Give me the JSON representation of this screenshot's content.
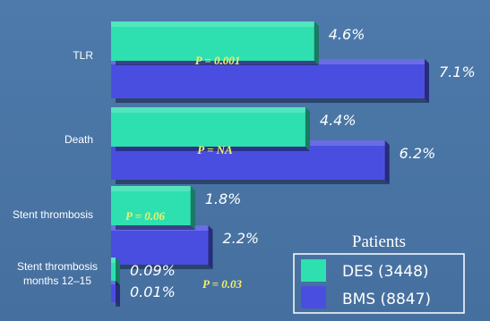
{
  "chart_data": {
    "type": "bar",
    "orientation": "horizontal",
    "categories": [
      "TLR",
      "Death",
      "Stent thrombosis",
      "Stent thrombosis months 12–15"
    ],
    "series": [
      {
        "name": "DES (3448)",
        "color": "#2ee0b0",
        "values": [
          4.6,
          4.4,
          1.8,
          0.09
        ],
        "labels": [
          "4.6%",
          "4.4%",
          "1.8%",
          "0.09%"
        ]
      },
      {
        "name": "BMS (8847)",
        "color": "#4a4ee0",
        "values": [
          7.1,
          6.2,
          2.2,
          0.01
        ],
        "labels": [
          "7.1%",
          "6.2%",
          "2.2%",
          "0.01%"
        ]
      }
    ],
    "p_values": [
      "P = 0.001",
      "P = NA",
      "P = 0.06",
      "P = 0.03"
    ],
    "legend_title": "Patients",
    "legend_position": "bottom-right",
    "xlim": [
      0,
      7.1
    ],
    "grid": false
  }
}
